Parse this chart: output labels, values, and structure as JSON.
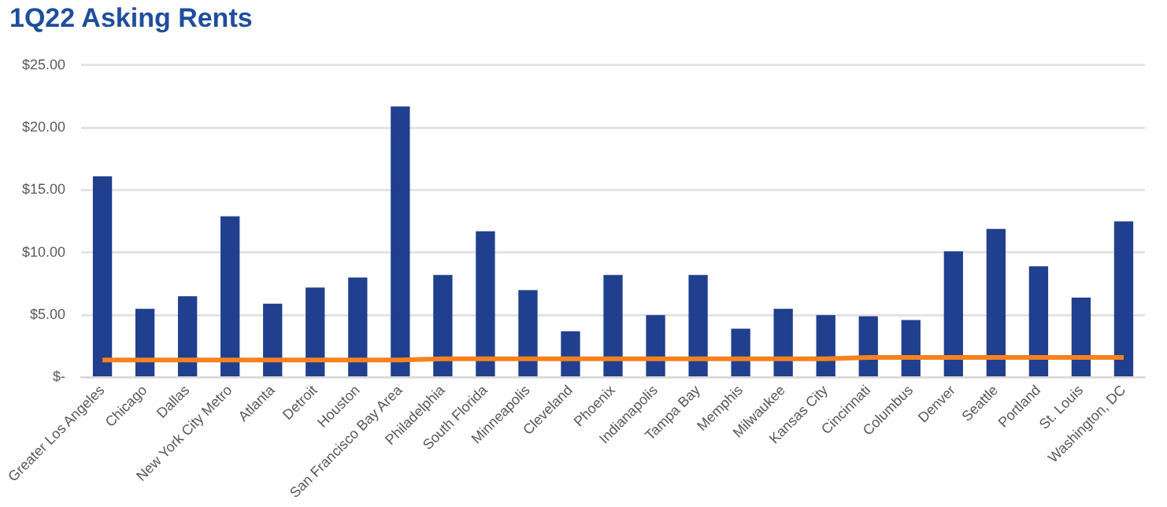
{
  "chart_data": {
    "type": "bar",
    "title": "1Q22 Asking Rents",
    "categories": [
      "Greater Los Angeles",
      "Chicago",
      "Dallas",
      "New York City Metro",
      "Atlanta",
      "Detroit",
      "Houston",
      "San Francisco Bay Area",
      "Philadelphia",
      "South Florida",
      "Minneapolis",
      "Cleveland",
      "Phoenix",
      "Indianapolis",
      "Tampa Bay",
      "Memphis",
      "Milwaukee",
      "Kansas City",
      "Cincinnati",
      "Columbus",
      "Denver",
      "Seattle",
      "Portland",
      "St. Louis",
      "Washington, DC"
    ],
    "series": [
      {
        "color": "#213f8f",
        "values": [
          16.1,
          5.5,
          6.5,
          12.9,
          5.9,
          7.2,
          8.0,
          21.7,
          8.2,
          11.7,
          7.0,
          3.7,
          8.2,
          5.0,
          8.2,
          3.9,
          5.5,
          5.0,
          4.9,
          4.6,
          10.1,
          11.9,
          8.9,
          6.4,
          12.5
        ]
      },
      {
        "type": "line",
        "color": "#f5821f",
        "values": [
          1.4,
          1.4,
          1.4,
          1.4,
          1.4,
          1.4,
          1.4,
          1.4,
          1.5,
          1.5,
          1.5,
          1.5,
          1.5,
          1.5,
          1.5,
          1.5,
          1.5,
          1.5,
          1.6,
          1.6,
          1.6,
          1.6,
          1.6,
          1.6,
          1.6
        ]
      }
    ],
    "ylim": [
      0,
      25
    ],
    "yticks": [
      {
        "value": 0,
        "label": "$-"
      },
      {
        "value": 5,
        "label": "$5.00"
      },
      {
        "value": 10,
        "label": "$10.00"
      },
      {
        "value": 15,
        "label": "$15.00"
      },
      {
        "value": 20,
        "label": "$20.00"
      },
      {
        "value": 25,
        "label": "$25.00"
      }
    ],
    "grid": "y",
    "legend": false,
    "marker": "none",
    "line_style": "solid"
  }
}
